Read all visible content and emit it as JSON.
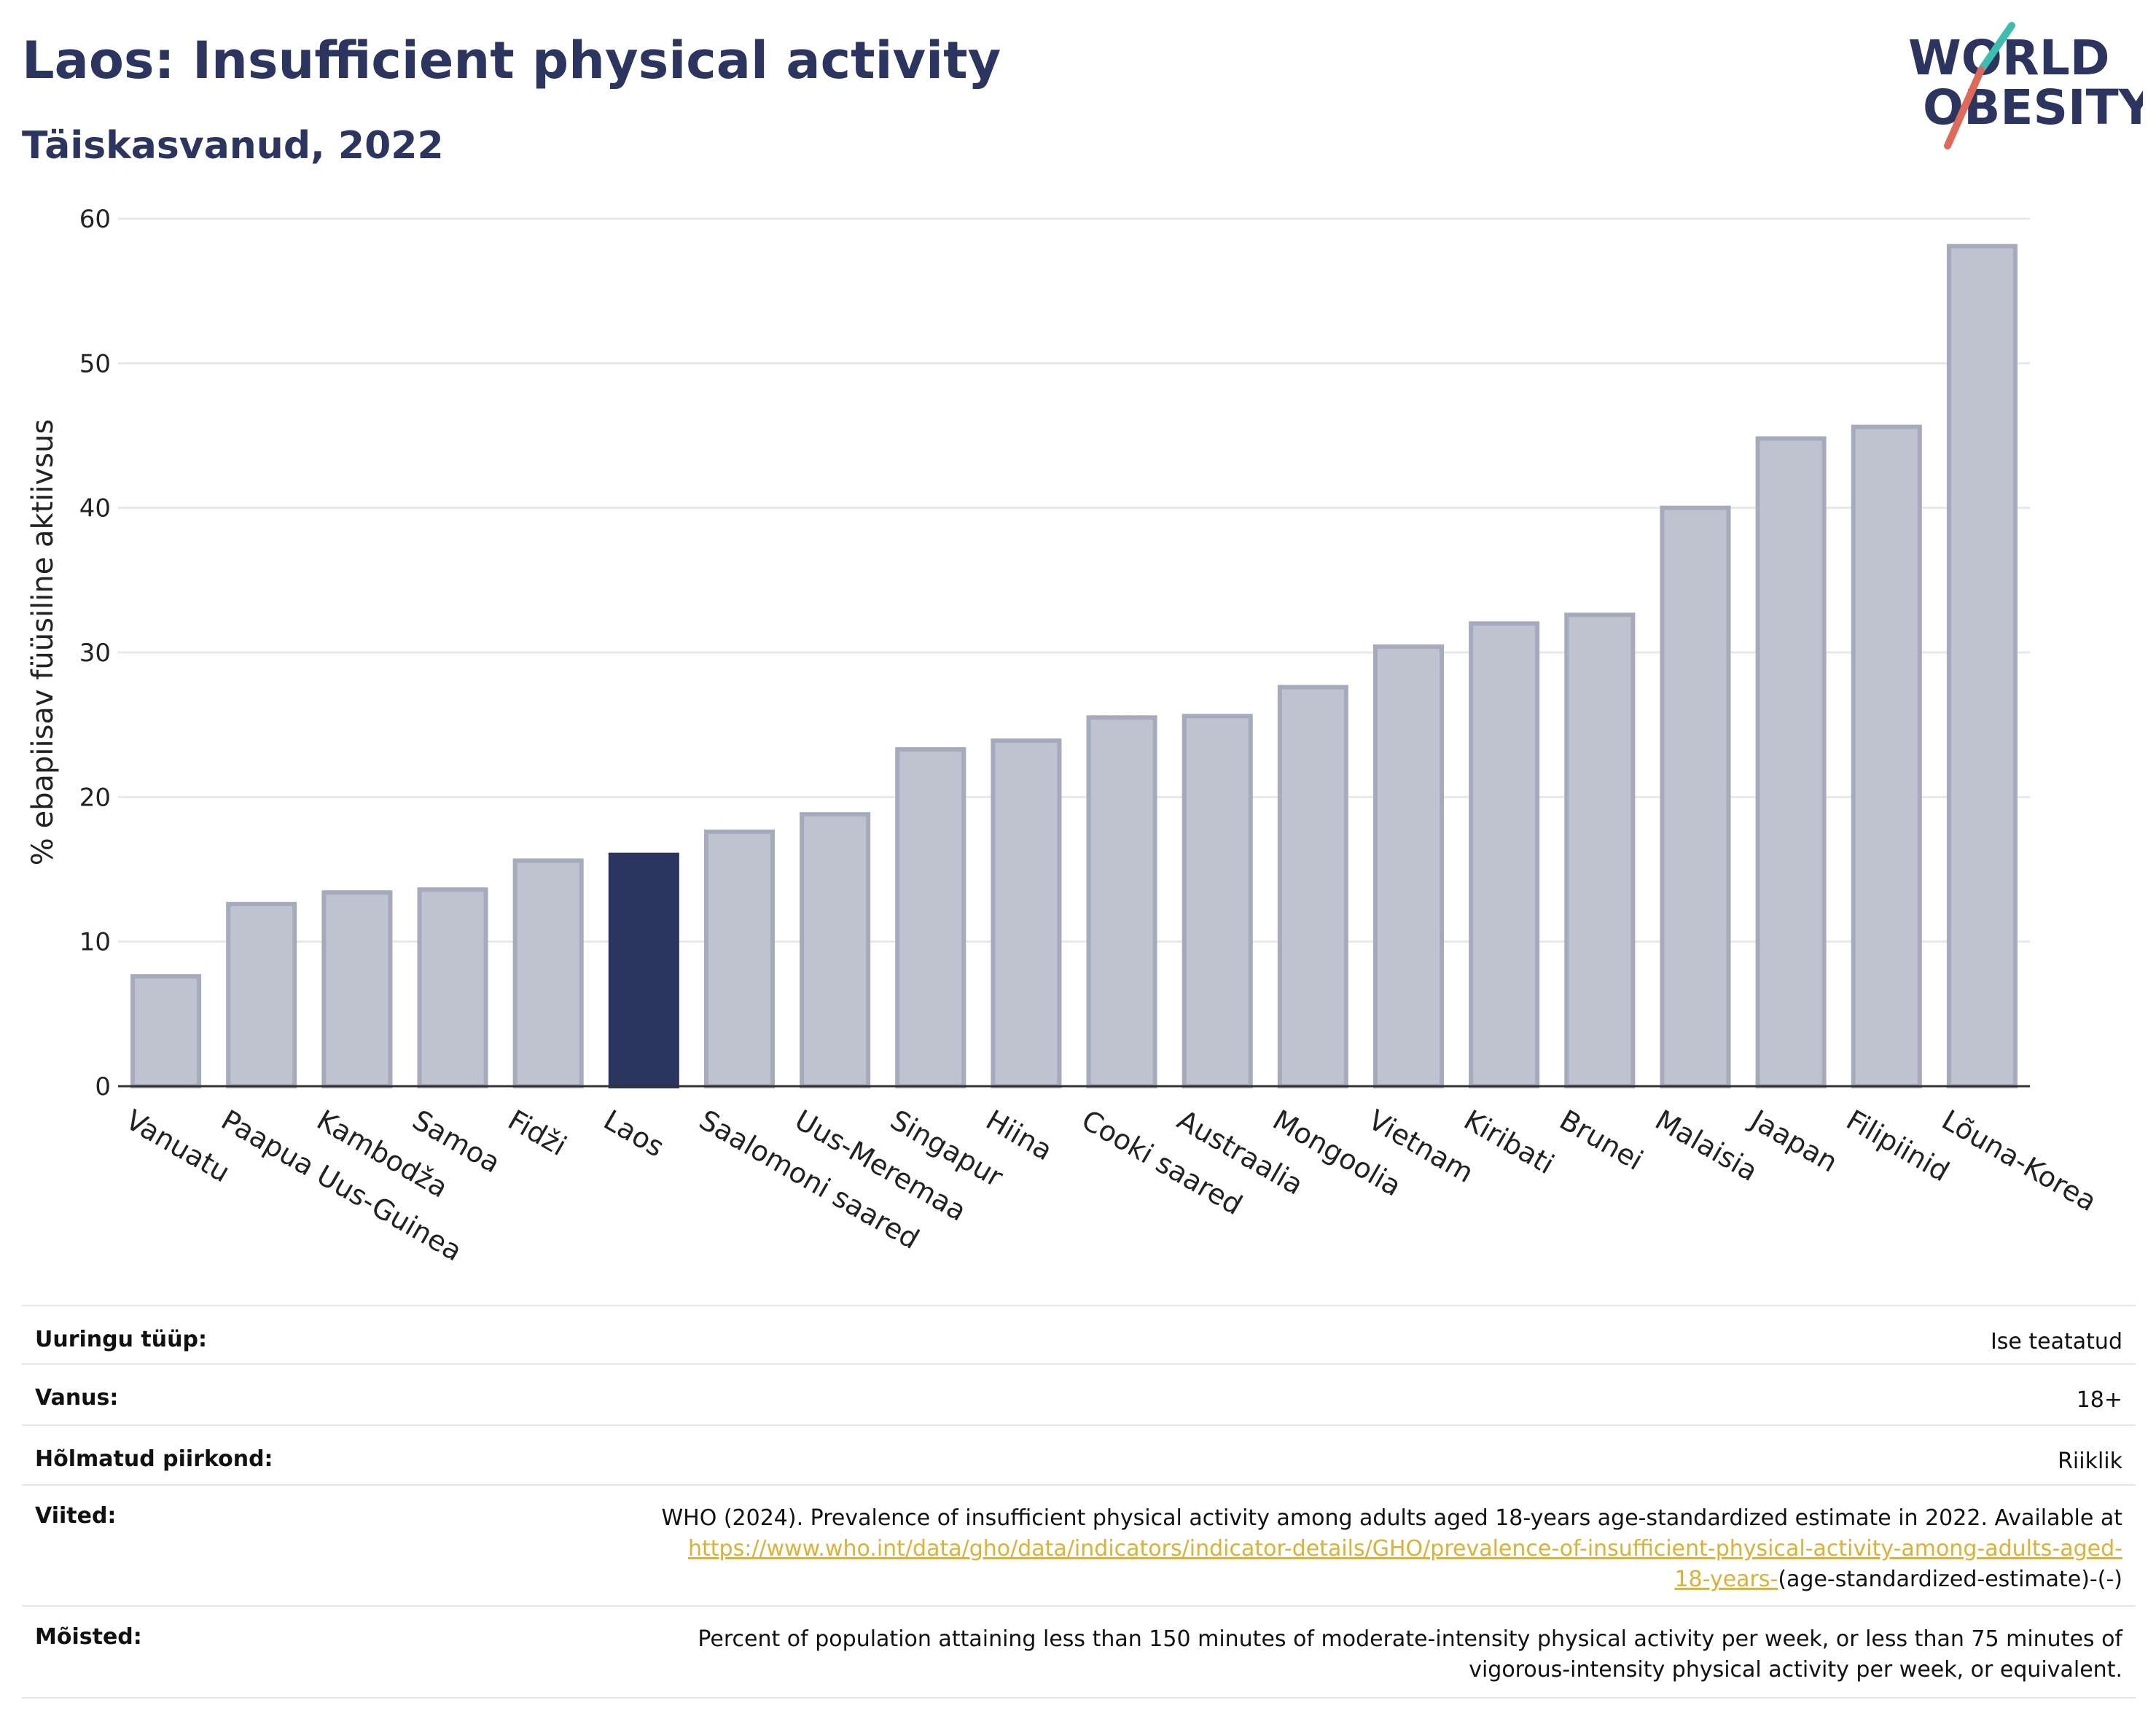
{
  "header": {
    "title": "Laos: Insufficient physical activity",
    "subtitle": "Täiskasvanud, 2022"
  },
  "logo": {
    "line1": "WORLD",
    "line2": "OBESITY"
  },
  "chart_data": {
    "type": "bar",
    "ylabel": "% ebapiisav füüsiline aktiivsus",
    "ylim": [
      0,
      60
    ],
    "yticks": [
      0,
      10,
      20,
      30,
      40,
      50,
      60
    ],
    "grid": true,
    "categories": [
      "Vanuatu",
      "Paapua Uus-Guinea",
      "Kambodža",
      "Samoa",
      "Fidži",
      "Laos",
      "Saalomoni saared",
      "Uus-Meremaa",
      "Singapur",
      "Hiina",
      "Cooki saared",
      "Austraalia",
      "Mongoolia",
      "Vietnam",
      "Kiribati",
      "Brunei",
      "Malaisia",
      "Jaapan",
      "Filipiinid",
      "Lõuna-Korea"
    ],
    "values": [
      7.6,
      12.6,
      13.4,
      13.6,
      15.6,
      16.0,
      17.6,
      18.8,
      23.3,
      23.9,
      25.5,
      25.6,
      27.6,
      30.4,
      32.0,
      32.6,
      40.0,
      44.8,
      45.6,
      58.1
    ],
    "highlight": "Laos",
    "colors": {
      "highlight": "#2b3560",
      "default": "#bfc3d0",
      "default_border": "#a5aabd"
    }
  },
  "info": {
    "survey_type_label": "Uuringu tüüp:",
    "survey_type_value": "Ise teatatud",
    "age_label": "Vanus:",
    "age_value": "18+",
    "area_label": "Hõlmatud piirkond:",
    "area_value": "Riiklik",
    "references_label": "Viited:",
    "references_text": "WHO (2024). Prevalence of insufficient physical activity among adults aged 18-years age-standardized estimate in 2022. Available at",
    "references_link_1": "https://www.who.int/data/gho/data/indicators/indicator-details/GHO/prevalence-of-insufficient-physical-activity-among-adults-aged-",
    "references_link_2": "18-years-",
    "references_tail": "(age-standardized-estimate)-(-)",
    "definitions_label": "Mõisted:",
    "definitions_text_1": "Percent of population attaining less than 150 minutes of moderate-intensity physical activity per week, or less than 75 minutes of",
    "definitions_text_2": "vigorous-intensity physical activity per week, or equivalent."
  }
}
